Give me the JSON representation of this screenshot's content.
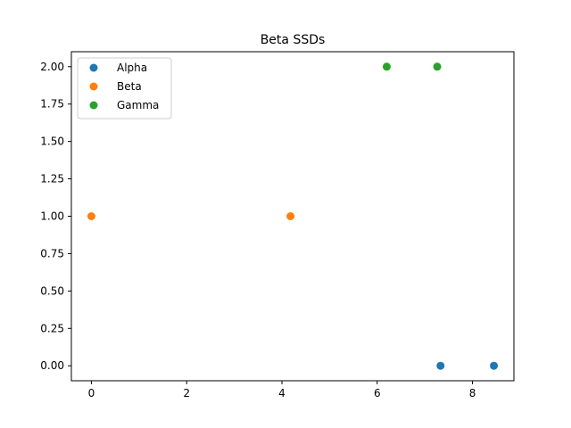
{
  "chart_data": {
    "type": "scatter",
    "title": "Beta SSDs",
    "xlabel": "",
    "ylabel": "",
    "xlim": [
      -0.42,
      8.87
    ],
    "ylim": [
      -0.1,
      2.1
    ],
    "x_ticks": [
      0,
      2,
      4,
      6,
      8
    ],
    "x_tick_labels": [
      "0",
      "2",
      "4",
      "6",
      "8"
    ],
    "y_ticks": [
      0.0,
      0.25,
      0.5,
      0.75,
      1.0,
      1.25,
      1.5,
      1.75,
      2.0
    ],
    "y_tick_labels": [
      "0.00",
      "0.25",
      "0.50",
      "0.75",
      "1.00",
      "1.25",
      "1.50",
      "1.75",
      "2.00"
    ],
    "grid": false,
    "legend_position": "upper-left",
    "series": [
      {
        "name": "Alpha",
        "color": "#1f77b4",
        "points": [
          {
            "x": 7.33,
            "y": 0
          },
          {
            "x": 8.45,
            "y": 0
          }
        ]
      },
      {
        "name": "Beta",
        "color": "#ff7f0e",
        "points": [
          {
            "x": 0.0,
            "y": 1
          },
          {
            "x": 4.18,
            "y": 1
          }
        ]
      },
      {
        "name": "Gamma",
        "color": "#2ca02c",
        "points": [
          {
            "x": 6.2,
            "y": 2
          },
          {
            "x": 7.26,
            "y": 2
          }
        ]
      }
    ]
  }
}
